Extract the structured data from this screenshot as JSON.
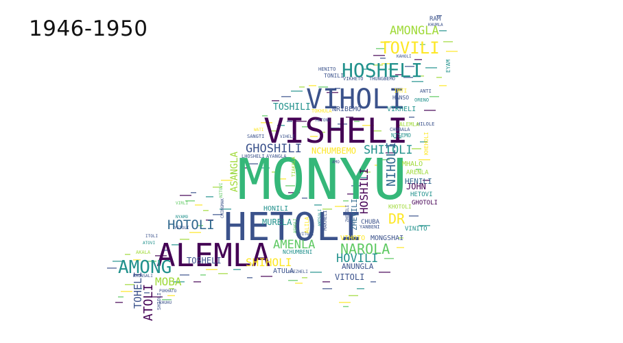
{
  "title": "1946-1950",
  "palette": {
    "dark_purple": "#440154",
    "indigo": "#3b528b",
    "teal": "#21918c",
    "green": "#5ec962",
    "yellow": "#fde725",
    "lime": "#a0da39",
    "blue": "#31688e"
  },
  "words": [
    {
      "text": "MONYU",
      "color": "#35b779"
    },
    {
      "text": "HETOLI",
      "color": "#3b528b"
    },
    {
      "text": "VISHELI",
      "color": "#440154"
    },
    {
      "text": "ALEMLA",
      "color": "#440154"
    },
    {
      "text": "VIHOLI",
      "color": "#3b528b"
    },
    {
      "text": "HOSHELI",
      "color": "#21918c"
    },
    {
      "text": "AMONG",
      "color": "#21918c"
    },
    {
      "text": "TOVILI",
      "color": "#fde725"
    },
    {
      "text": "AMONGLA",
      "color": "#a0da39"
    },
    {
      "text": "GHOSHILI",
      "color": "#3b528b"
    },
    {
      "text": "SHITOLI",
      "color": "#21918c"
    },
    {
      "text": "NAROLA",
      "color": "#5ec962"
    },
    {
      "text": "HOTOLI",
      "color": "#31688e"
    },
    {
      "text": "AMENLA",
      "color": "#5ec962"
    },
    {
      "text": "HOVILI",
      "color": "#21918c"
    },
    {
      "text": "SHIHOLI",
      "color": "#fde725"
    },
    {
      "text": "MOBA",
      "color": "#a0da39"
    },
    {
      "text": "ATOLI",
      "color": "#440154"
    },
    {
      "text": "TOHELI",
      "color": "#3b528b"
    },
    {
      "text": "NIHOLI",
      "color": "#31688e"
    },
    {
      "text": "HOSHILI",
      "color": "#440154"
    },
    {
      "text": "DR",
      "color": "#fde725"
    },
    {
      "text": "TOSHILI",
      "color": "#21918c"
    },
    {
      "text": "NCHUMBEMO",
      "color": "#fde725"
    },
    {
      "text": "TOSHELI",
      "color": "#3b528b"
    },
    {
      "text": "VITOLI",
      "color": "#3b528b"
    },
    {
      "text": "ANUNGLA",
      "color": "#3b528b"
    },
    {
      "text": "MURELA",
      "color": "#21918c"
    },
    {
      "text": "HENILI",
      "color": "#31688e"
    },
    {
      "text": "JOHN",
      "color": "#440154"
    },
    {
      "text": "MHALO",
      "color": "#a0da39"
    },
    {
      "text": "ASANGLA",
      "color": "#a0da39"
    },
    {
      "text": "VIKHELI",
      "color": "#21918c"
    },
    {
      "text": "NRIBEMO",
      "color": "#3b528b"
    },
    {
      "text": "MONGSHAI",
      "color": "#3b528b"
    },
    {
      "text": "HONILI",
      "color": "#21918c"
    },
    {
      "text": "ATULA",
      "color": "#3b528b"
    },
    {
      "text": "VIHOTO",
      "color": "#fde725"
    },
    {
      "text": "GHOTOLI",
      "color": "#440154"
    },
    {
      "text": "ARENLA",
      "color": "#a0da39"
    },
    {
      "text": "HETOVI",
      "color": "#21918c"
    },
    {
      "text": "VINITO",
      "color": "#21918c"
    },
    {
      "text": "CHUBA",
      "color": "#3b528b"
    },
    {
      "text": "ZHEVILI",
      "color": "#31688e"
    },
    {
      "text": "KHOTOLI",
      "color": "#a0da39"
    },
    {
      "text": "YANBENI",
      "color": "#3b528b"
    },
    {
      "text": "CHUBALA",
      "color": "#3b528b"
    },
    {
      "text": "HILOLE",
      "color": "#3b528b"
    },
    {
      "text": "NTSEMO",
      "color": "#21918c"
    },
    {
      "text": "ALEMLA",
      "color": "#a0da39"
    },
    {
      "text": "TONILI",
      "color": "#3b528b"
    },
    {
      "text": "HENITO",
      "color": "#3b528b"
    },
    {
      "text": "HANSO",
      "color": "#3b528b"
    },
    {
      "text": "IMTI",
      "color": "#fde725"
    },
    {
      "text": "ANTI",
      "color": "#3b528b"
    },
    {
      "text": "ORENO",
      "color": "#21918c"
    },
    {
      "text": "RAM",
      "color": "#3b528b"
    },
    {
      "text": "KHUMLA",
      "color": "#3b528b"
    },
    {
      "text": "EYAM",
      "color": "#21918c"
    },
    {
      "text": "KAHOLI",
      "color": "#3b528b"
    },
    {
      "text": "VIKHETO",
      "color": "#3b528b"
    },
    {
      "text": "THUNGBEMO",
      "color": "#3b528b"
    },
    {
      "text": "LHOSHELI",
      "color": "#3b528b"
    },
    {
      "text": "AYANGLA",
      "color": "#3b528b"
    },
    {
      "text": "SANGTI",
      "color": "#3b528b"
    },
    {
      "text": "VIHELI",
      "color": "#3b528b"
    },
    {
      "text": "TIAKALA",
      "color": "#a0da39"
    },
    {
      "text": "NCHUMBENI",
      "color": "#21918c"
    },
    {
      "text": "VITONI",
      "color": "#3b528b"
    },
    {
      "text": "NYAMO",
      "color": "#21918c"
    },
    {
      "text": "VIRLI",
      "color": "#5ec962"
    },
    {
      "text": "YETOLI",
      "color": "#3b528b"
    },
    {
      "text": "ITOLI",
      "color": "#3b528b"
    },
    {
      "text": "ATOVI",
      "color": "#21918c"
    },
    {
      "text": "AKALA",
      "color": "#a0da39"
    },
    {
      "text": "RHONSALI",
      "color": "#3b528b"
    },
    {
      "text": "PUKHATO",
      "color": "#3b528b"
    },
    {
      "text": "SHIOLI",
      "color": "#3b528b"
    },
    {
      "text": "KHEZHELI",
      "color": "#3b528b"
    },
    {
      "text": "AMO",
      "color": "#3b528b"
    },
    {
      "text": "NITOVI",
      "color": "#5ec962"
    },
    {
      "text": "MAKHELI",
      "color": "#3b528b"
    },
    {
      "text": "ZHEVILI",
      "color": "#3b528b"
    },
    {
      "text": "CHINGMAK",
      "color": "#3b528b"
    },
    {
      "text": "ASHOLI",
      "color": "#5ec962"
    },
    {
      "text": "ALILA",
      "color": "#fde725"
    },
    {
      "text": "AMTSOLI",
      "color": "#21918c"
    },
    {
      "text": "KHEHOLI",
      "color": "#fde725"
    },
    {
      "text": "TOKHULA",
      "color": "#fde725"
    },
    {
      "text": "WATI",
      "color": "#fde725"
    },
    {
      "text": "HETONI",
      "color": "#3b528b"
    },
    {
      "text": "KHUHU",
      "color": "#3b528b"
    }
  ]
}
